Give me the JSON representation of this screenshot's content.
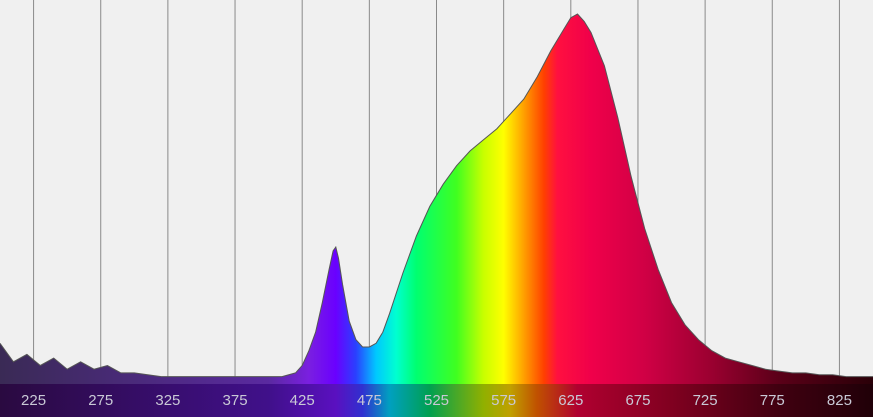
{
  "chart_data": {
    "type": "area",
    "title": "",
    "xlabel": "",
    "ylabel": "",
    "xlim": [
      200,
      850
    ],
    "ylim": [
      0,
      1.0
    ],
    "grid": true,
    "x_ticks": [
      225,
      275,
      325,
      375,
      425,
      475,
      525,
      575,
      625,
      675,
      725,
      775,
      825
    ],
    "x_tick_labels": [
      "225",
      "275",
      "325",
      "375",
      "425",
      "475",
      "525",
      "575",
      "625",
      "675",
      "725",
      "775",
      "825"
    ],
    "series": [
      {
        "x": [
          200,
          210,
          220,
          230,
          240,
          250,
          260,
          270,
          280,
          290,
          300,
          320,
          340,
          360,
          380,
          400,
          410,
          420,
          425,
          430,
          435,
          440,
          445,
          448,
          450,
          452,
          455,
          460,
          465,
          470,
          475,
          480,
          485,
          490,
          500,
          510,
          520,
          530,
          540,
          550,
          560,
          570,
          580,
          590,
          600,
          610,
          620,
          625,
          630,
          635,
          640,
          650,
          660,
          670,
          680,
          690,
          700,
          710,
          720,
          730,
          740,
          750,
          760,
          770,
          780,
          790,
          800,
          810,
          820,
          830,
          840,
          850
        ],
        "y": [
          0.11,
          0.06,
          0.08,
          0.05,
          0.07,
          0.04,
          0.06,
          0.04,
          0.05,
          0.03,
          0.03,
          0.02,
          0.02,
          0.02,
          0.02,
          0.02,
          0.02,
          0.03,
          0.05,
          0.09,
          0.14,
          0.22,
          0.31,
          0.36,
          0.37,
          0.34,
          0.27,
          0.17,
          0.12,
          0.1,
          0.1,
          0.11,
          0.14,
          0.19,
          0.3,
          0.4,
          0.48,
          0.54,
          0.59,
          0.63,
          0.66,
          0.69,
          0.73,
          0.77,
          0.83,
          0.9,
          0.96,
          0.99,
          1.0,
          0.98,
          0.95,
          0.86,
          0.72,
          0.56,
          0.42,
          0.31,
          0.22,
          0.16,
          0.12,
          0.09,
          0.07,
          0.06,
          0.05,
          0.04,
          0.035,
          0.03,
          0.03,
          0.025,
          0.025,
          0.02,
          0.02,
          0.02
        ]
      }
    ]
  }
}
